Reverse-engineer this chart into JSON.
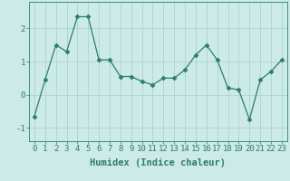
{
  "x": [
    0,
    1,
    2,
    3,
    4,
    5,
    6,
    7,
    8,
    9,
    10,
    11,
    12,
    13,
    14,
    15,
    16,
    17,
    18,
    19,
    20,
    21,
    22,
    23
  ],
  "y": [
    -0.65,
    0.45,
    1.5,
    1.3,
    2.35,
    2.35,
    1.05,
    1.05,
    0.55,
    0.55,
    0.4,
    0.3,
    0.5,
    0.5,
    0.75,
    1.2,
    1.5,
    1.05,
    0.2,
    0.15,
    -0.75,
    0.45,
    0.7,
    1.05
  ],
  "line_color": "#2d7d6e",
  "marker": "D",
  "marker_size": 2.5,
  "bg_color": "#cceae6",
  "grid_color": "#aed4cf",
  "xlabel": "Humidex (Indice chaleur)",
  "xlabel_fontsize": 7.5,
  "tick_fontsize": 6.5,
  "ylim": [
    -1.4,
    2.8
  ],
  "xlim": [
    -0.5,
    23.5
  ],
  "yticks": [
    -1,
    0,
    1,
    2
  ],
  "xticks": [
    0,
    1,
    2,
    3,
    4,
    5,
    6,
    7,
    8,
    9,
    10,
    11,
    12,
    13,
    14,
    15,
    16,
    17,
    18,
    19,
    20,
    21,
    22,
    23
  ],
  "linewidth": 0.9
}
